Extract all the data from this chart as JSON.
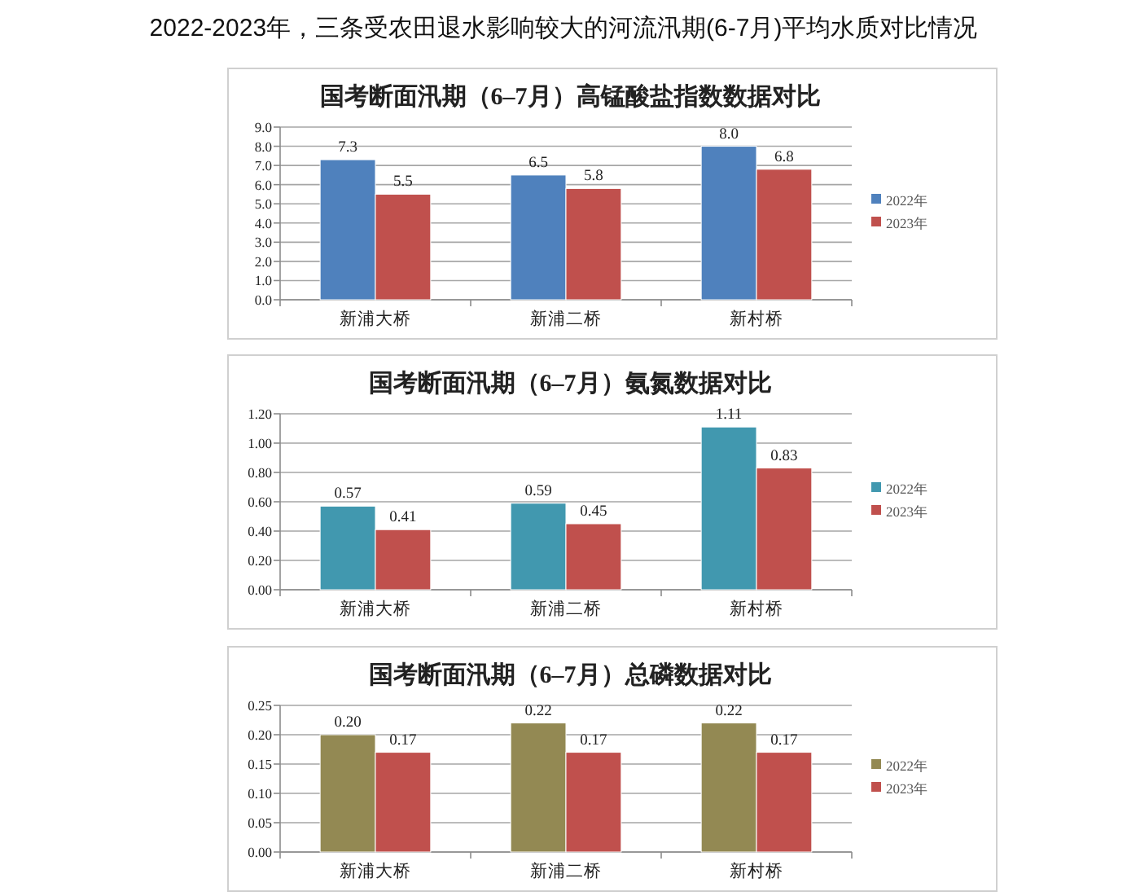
{
  "chart_data": [
    {
      "type": "bar",
      "title": "国考断面汛期（6–7月）高锰酸盐指数数据对比",
      "annotations": [
        "2022-2023年，三条受农田退水影响较大的河流汛期(6-7月)平均水质对比情况"
      ],
      "categories": [
        "新浦大桥",
        "新浦二桥",
        "新村桥"
      ],
      "series": [
        {
          "name": "2022年",
          "color": "#4f81bd",
          "values": [
            7.3,
            6.5,
            8.0
          ],
          "value_labels": [
            "7.3",
            "6.5",
            "8.0"
          ]
        },
        {
          "name": "2023年",
          "color": "#c0504d",
          "values": [
            5.5,
            5.8,
            6.8
          ],
          "value_labels": [
            "5.5",
            "5.8",
            "6.8"
          ]
        }
      ],
      "ylim": [
        0,
        9
      ],
      "yticks": [
        {
          "value": 0,
          "label": "0.0"
        },
        {
          "value": 1,
          "label": "1.0"
        },
        {
          "value": 2,
          "label": "2.0"
        },
        {
          "value": 3,
          "label": "3.0"
        },
        {
          "value": 4,
          "label": "4.0"
        },
        {
          "value": 5,
          "label": "5.0"
        },
        {
          "value": 6,
          "label": "6.0"
        },
        {
          "value": 7,
          "label": "7.0"
        },
        {
          "value": 8,
          "label": "8.0"
        },
        {
          "value": 9,
          "label": "9.0"
        }
      ],
      "grid": "y",
      "legend": "right"
    },
    {
      "type": "bar",
      "title": "国考断面汛期（6–7月）氨氮数据对比",
      "categories": [
        "新浦大桥",
        "新浦二桥",
        "新村桥"
      ],
      "series": [
        {
          "name": "2022年",
          "color": "#4198af",
          "values": [
            0.57,
            0.59,
            1.11
          ]
        },
        {
          "name": "2023年",
          "color": "#c0504d",
          "values": [
            0.41,
            0.45,
            0.83
          ]
        }
      ],
      "ylim": [
        0,
        1.2
      ],
      "yticks": [
        {
          "value": 0,
          "label": "0.00"
        },
        {
          "value": 0.2,
          "label": "0.20"
        },
        {
          "value": 0.4,
          "label": "0.40"
        },
        {
          "value": 0.6,
          "label": "0.60"
        },
        {
          "value": 0.8,
          "label": "0.80"
        },
        {
          "value": 1.0,
          "label": "1.00"
        },
        {
          "value": 1.2,
          "label": "1.20"
        }
      ],
      "grid": "y",
      "legend": "right",
      "data_labels": true
    },
    {
      "type": "bar",
      "title": "国考断面汛期（6–7月）总磷数据对比",
      "categories": [
        "新浦大桥",
        "新浦二桥",
        "新村桥"
      ],
      "series": [
        {
          "name": "2022年",
          "color": "#938953",
          "values": [
            0.2,
            0.22,
            0.22
          ],
          "value_labels": [
            "0.20",
            "0.22",
            "0.22"
          ]
        },
        {
          "name": "2023年",
          "color": "#c0504d",
          "values": [
            0.17,
            0.17,
            0.17
          ],
          "value_labels": [
            "0.17",
            "0.17",
            "0.17"
          ]
        }
      ],
      "ylim": [
        0,
        0.25
      ],
      "yticks": [
        {
          "value": 0,
          "label": "0.00"
        },
        {
          "value": 0.05,
          "label": "0.05"
        },
        {
          "value": 0.1,
          "label": "0.10"
        },
        {
          "value": 0.15,
          "label": "0.15"
        },
        {
          "value": 0.2,
          "label": "0.20"
        },
        {
          "value": 0.25,
          "label": "0.25"
        }
      ],
      "grid": "y",
      "legend": "right"
    }
  ]
}
